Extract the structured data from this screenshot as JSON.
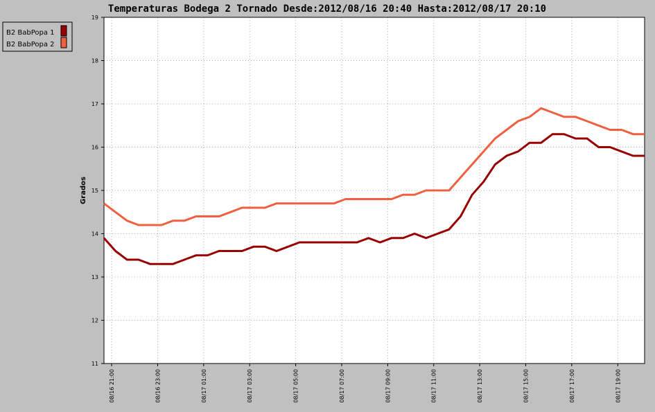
{
  "chart_data": {
    "type": "line",
    "title": "Temperaturas Bodega 2 Tornado Desde:2012/08/16 20:40 Hasta:2012/08/17 20:10",
    "y_label": "Grados",
    "x": [
      "08/16 20:40",
      "08/16 21:10",
      "08/16 21:40",
      "08/16 22:10",
      "08/16 22:40",
      "08/16 23:10",
      "08/16 23:40",
      "08/17 00:10",
      "08/17 00:40",
      "08/17 01:10",
      "08/17 01:40",
      "08/17 02:10",
      "08/17 02:40",
      "08/17 03:10",
      "08/17 03:40",
      "08/17 04:10",
      "08/17 04:40",
      "08/17 05:10",
      "08/17 05:40",
      "08/17 06:10",
      "08/17 06:40",
      "08/17 07:10",
      "08/17 07:40",
      "08/17 08:10",
      "08/17 08:40",
      "08/17 09:10",
      "08/17 09:40",
      "08/17 10:10",
      "08/17 10:40",
      "08/17 11:10",
      "08/17 11:40",
      "08/17 12:10",
      "08/17 12:40",
      "08/17 13:10",
      "08/17 13:40",
      "08/17 14:10",
      "08/17 14:40",
      "08/17 15:10",
      "08/17 15:40",
      "08/17 16:10",
      "08/17 16:40",
      "08/17 17:10",
      "08/17 17:40",
      "08/17 18:10",
      "08/17 18:40",
      "08/17 19:10",
      "08/17 19:40",
      "08/17 20:10"
    ],
    "series": [
      {
        "name": "B2 BabPopa 1",
        "color": "#990000",
        "values": [
          13.9,
          13.6,
          13.4,
          13.4,
          13.3,
          13.3,
          13.3,
          13.4,
          13.5,
          13.5,
          13.6,
          13.6,
          13.6,
          13.7,
          13.7,
          13.6,
          13.7,
          13.8,
          13.8,
          13.8,
          13.8,
          13.8,
          13.8,
          13.9,
          13.8,
          13.9,
          13.9,
          14.0,
          13.9,
          14.0,
          14.1,
          14.4,
          14.9,
          15.2,
          15.6,
          15.8,
          15.9,
          16.1,
          16.1,
          16.3,
          16.3,
          16.2,
          16.2,
          16.0,
          16.0,
          15.9,
          15.8,
          15.8
        ]
      },
      {
        "name": "B2 BabPopa 2",
        "color": "#f06040",
        "values": [
          14.7,
          14.5,
          14.3,
          14.2,
          14.2,
          14.2,
          14.3,
          14.3,
          14.4,
          14.4,
          14.4,
          14.5,
          14.6,
          14.6,
          14.6,
          14.7,
          14.7,
          14.7,
          14.7,
          14.7,
          14.7,
          14.8,
          14.8,
          14.8,
          14.8,
          14.8,
          14.9,
          14.9,
          15.0,
          15.0,
          15.0,
          15.3,
          15.6,
          15.9,
          16.2,
          16.4,
          16.6,
          16.7,
          16.9,
          16.8,
          16.7,
          16.7,
          16.6,
          16.5,
          16.4,
          16.4,
          16.3,
          16.3
        ]
      }
    ],
    "xlim": [
      "08/16 20:40",
      "08/17 20:10"
    ],
    "xticks": [
      "08/16 21:00",
      "08/16 23:00",
      "08/17 01:00",
      "08/17 03:00",
      "08/17 05:00",
      "08/17 07:00",
      "08/17 09:00",
      "08/17 11:00",
      "08/17 13:00",
      "08/17 15:00",
      "08/17 17:00",
      "08/17 19:00"
    ],
    "ylim": [
      11,
      19
    ],
    "yticks": [
      11,
      12,
      13,
      14,
      15,
      16,
      17,
      18,
      19
    ],
    "grid": true
  }
}
